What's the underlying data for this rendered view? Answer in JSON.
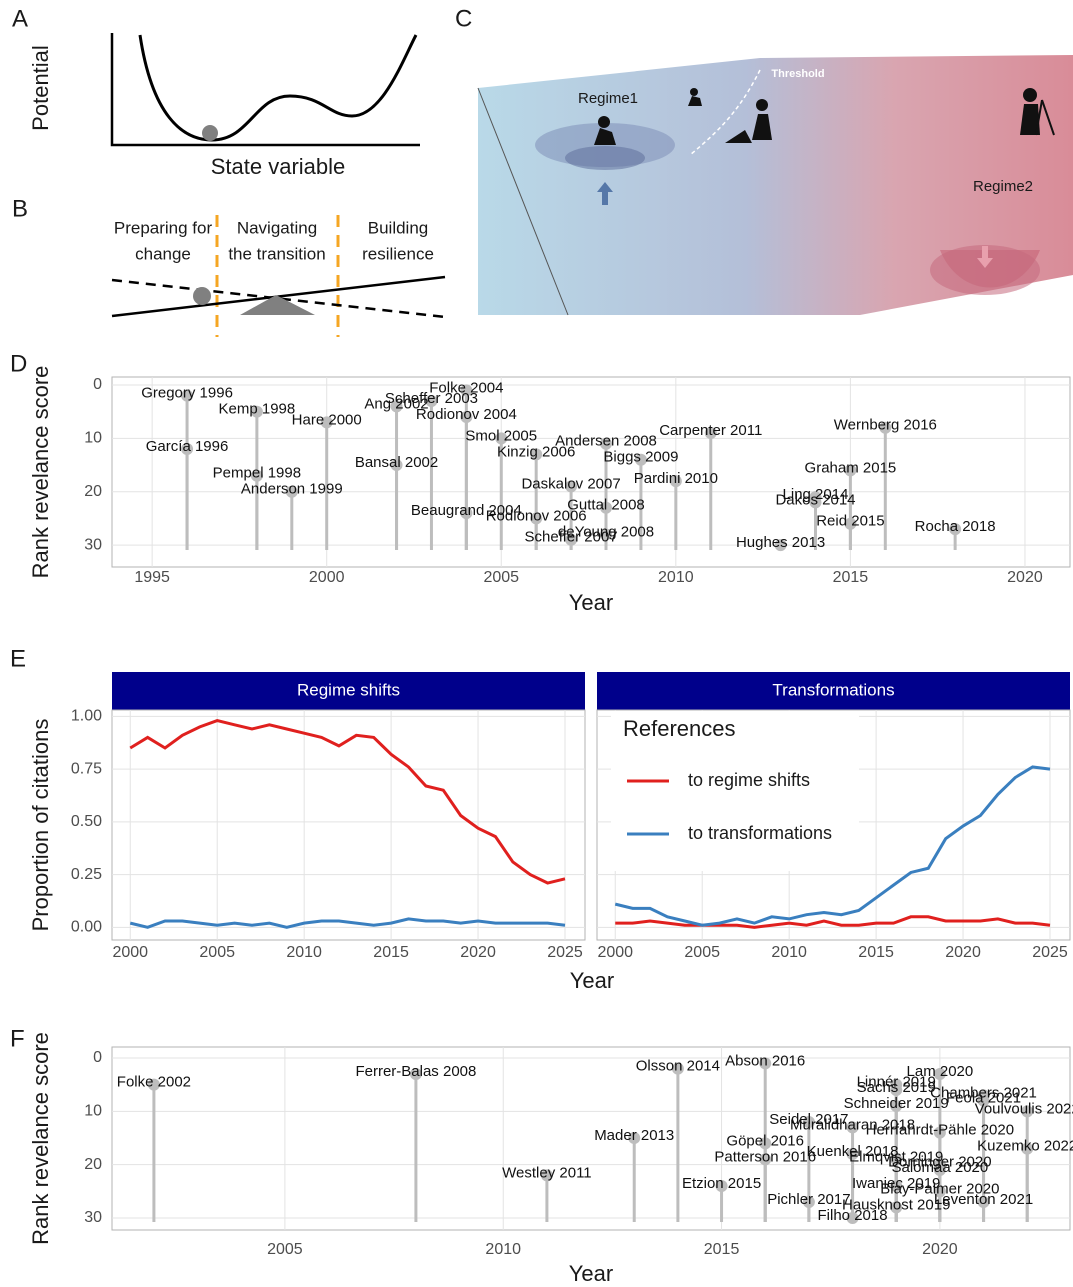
{
  "panel_letters": [
    "A",
    "B",
    "C",
    "D",
    "E",
    "F"
  ],
  "panel_a": {
    "y_label": "Potential",
    "x_label": "State variable"
  },
  "panel_b": {
    "phases": [
      [
        "Preparing for",
        "change"
      ],
      [
        "Navigating",
        "the transition"
      ],
      [
        "Building",
        "resilience"
      ]
    ]
  },
  "panel_c": {
    "labels": [
      "Regime1",
      "Threshold",
      "Regime2"
    ]
  },
  "chart_data": [
    {
      "type": "lollipop",
      "ylabel": "Rank revelance score",
      "xlabel": "Year",
      "xlim": [
        1993.85,
        2021.29
      ],
      "xticks": [
        1995,
        2000,
        2005,
        2010,
        2015,
        2020
      ],
      "ylim": [
        -1.5,
        34.1
      ],
      "yticks": [
        0,
        10,
        20,
        30
      ],
      "y_reversed": true,
      "grid": true,
      "color": "#bdbdbd",
      "points": [
        {
          "label": "Gregory 1996",
          "x": 1996,
          "y": 2
        },
        {
          "label": "García 1996",
          "x": 1996,
          "y": 12
        },
        {
          "label": "Kemp 1998",
          "x": 1998,
          "y": 5
        },
        {
          "label": "Pempel 1998",
          "x": 1998,
          "y": 17
        },
        {
          "label": "Anderson 1999",
          "x": 1999,
          "y": 20
        },
        {
          "label": "Hare 2000",
          "x": 2000,
          "y": 7
        },
        {
          "label": "Bansal 2002",
          "x": 2002,
          "y": 15
        },
        {
          "label": "Ang 2002",
          "x": 2002,
          "y": 4
        },
        {
          "label": "Scheffer 2003",
          "x": 2003,
          "y": 3
        },
        {
          "label": "Folke 2004",
          "x": 2004,
          "y": 1
        },
        {
          "label": "Rodionov 2004",
          "x": 2004,
          "y": 6
        },
        {
          "label": "Beaugrand 2004",
          "x": 2004,
          "y": 24
        },
        {
          "label": "Smol 2005",
          "x": 2005,
          "y": 10
        },
        {
          "label": "Kinzig 2006",
          "x": 2006,
          "y": 13
        },
        {
          "label": "Rodionov 2006",
          "x": 2006,
          "y": 25
        },
        {
          "label": "Daskalov 2007",
          "x": 2007,
          "y": 19
        },
        {
          "label": "Scheffer 2007",
          "x": 2007,
          "y": 29
        },
        {
          "label": "Andersen 2008",
          "x": 2008,
          "y": 11
        },
        {
          "label": "Guttal 2008",
          "x": 2008,
          "y": 23
        },
        {
          "label": "deYoung 2008",
          "x": 2008,
          "y": 28
        },
        {
          "label": "Biggs 2009",
          "x": 2009,
          "y": 14
        },
        {
          "label": "Pardini 2010",
          "x": 2010,
          "y": 18
        },
        {
          "label": "Carpenter 2011",
          "x": 2011,
          "y": 9
        },
        {
          "label": "Hughes 2013",
          "x": 2013,
          "y": 30
        },
        {
          "label": "Ling 2014",
          "x": 2014,
          "y": 21
        },
        {
          "label": "Dakos 2014",
          "x": 2014,
          "y": 22
        },
        {
          "label": "Graham 2015",
          "x": 2015,
          "y": 16
        },
        {
          "label": "Reid 2015",
          "x": 2015,
          "y": 26
        },
        {
          "label": "Wernberg 2016",
          "x": 2016,
          "y": 8
        },
        {
          "label": "Rocha 2018",
          "x": 2018,
          "y": 27
        }
      ]
    },
    {
      "type": "facet_line",
      "ylabel": "Proportion of citations",
      "xlabel": "Year",
      "x": [
        2000,
        2001,
        2002,
        2003,
        2004,
        2005,
        2006,
        2007,
        2008,
        2009,
        2010,
        2011,
        2012,
        2013,
        2014,
        2015,
        2016,
        2017,
        2018,
        2019,
        2020,
        2021,
        2022,
        2023,
        2024,
        2025
      ],
      "xlim": [
        1998.95,
        2026.15
      ],
      "xticks": [
        2000,
        2005,
        2010,
        2015,
        2020,
        2025
      ],
      "ylim": [
        -0.06,
        1.03
      ],
      "yticks": [
        {
          "value": 0,
          "label": "0.00"
        },
        {
          "value": 0.25,
          "label": "0.25"
        },
        {
          "value": 0.5,
          "label": "0.50"
        },
        {
          "value": 0.75,
          "label": "0.75"
        },
        {
          "value": 1,
          "label": "1.00"
        }
      ],
      "grid": true,
      "strip_color": "#00008b",
      "legend_title": "References",
      "series": [
        {
          "name": "to regime shifts",
          "color": "#e0201e"
        },
        {
          "name": "to transformations",
          "color": "#3a7fbf"
        }
      ],
      "facets": [
        {
          "title": "Regime shifts",
          "values": [
            [
              0.85,
              0.9,
              0.85,
              0.91,
              0.95,
              0.98,
              0.96,
              0.94,
              0.96,
              0.94,
              0.92,
              0.9,
              0.86,
              0.91,
              0.9,
              0.82,
              0.76,
              0.67,
              0.65,
              0.53,
              0.47,
              0.43,
              0.31,
              0.25,
              0.21,
              0.23
            ],
            [
              0.02,
              0.0,
              0.03,
              0.03,
              0.02,
              0.01,
              0.02,
              0.01,
              0.02,
              0.0,
              0.02,
              0.03,
              0.03,
              0.02,
              0.01,
              0.02,
              0.04,
              0.03,
              0.03,
              0.02,
              0.03,
              0.02,
              0.02,
              0.02,
              0.02,
              0.01
            ]
          ]
        },
        {
          "title": "Transformations",
          "values": [
            [
              0.02,
              0.02,
              0.03,
              0.02,
              0.01,
              0.01,
              0.01,
              0.01,
              0.0,
              0.01,
              0.02,
              0.01,
              0.03,
              0.01,
              0.01,
              0.02,
              0.02,
              0.05,
              0.05,
              0.03,
              0.03,
              0.03,
              0.04,
              0.02,
              0.02,
              0.01
            ],
            [
              0.11,
              0.09,
              0.09,
              0.05,
              0.03,
              0.01,
              0.02,
              0.04,
              0.02,
              0.05,
              0.04,
              0.06,
              0.07,
              0.06,
              0.08,
              0.14,
              0.2,
              0.26,
              0.28,
              0.42,
              0.48,
              0.53,
              0.63,
              0.71,
              0.76,
              0.75
            ]
          ]
        }
      ]
    },
    {
      "type": "lollipop",
      "ylabel": "Rank revelance score",
      "xlabel": "Year",
      "xlim": [
        2001.04,
        2022.98
      ],
      "xticks": [
        2005,
        2010,
        2015,
        2020
      ],
      "ylim": [
        -2.06,
        32.25
      ],
      "yticks": [
        0,
        10,
        20,
        30
      ],
      "y_reversed": true,
      "grid": true,
      "color": "#bdbdbd",
      "points": [
        {
          "label": "Folke 2002",
          "x": 2002,
          "y": 5
        },
        {
          "label": "Ferrer-Balas 2008",
          "x": 2008,
          "y": 3
        },
        {
          "label": "Westley 2011",
          "x": 2011,
          "y": 22
        },
        {
          "label": "Mader 2013",
          "x": 2013,
          "y": 15
        },
        {
          "label": "Olsson 2014",
          "x": 2014,
          "y": 2
        },
        {
          "label": "Etzion 2015",
          "x": 2015,
          "y": 24
        },
        {
          "label": "Abson 2016",
          "x": 2016,
          "y": 1
        },
        {
          "label": "Göpel 2016",
          "x": 2016,
          "y": 16
        },
        {
          "label": "Patterson 2016",
          "x": 2016,
          "y": 19
        },
        {
          "label": "Seidel 2017",
          "x": 2017,
          "y": 12
        },
        {
          "label": "Pichler 2017",
          "x": 2017,
          "y": 27
        },
        {
          "label": "Muralidharan 2018",
          "x": 2018,
          "y": 13
        },
        {
          "label": "Kuenkel 2018",
          "x": 2018,
          "y": 18
        },
        {
          "label": "Filho 2018",
          "x": 2018,
          "y": 30
        },
        {
          "label": "Linnér 2019",
          "x": 2019,
          "y": 5
        },
        {
          "label": "Sachs 2019",
          "x": 2019,
          "y": 6
        },
        {
          "label": "Schneider 2019",
          "x": 2019,
          "y": 9
        },
        {
          "label": "Elmqvist 2019",
          "x": 2019,
          "y": 19
        },
        {
          "label": "Iwaniec 2019",
          "x": 2019,
          "y": 24
        },
        {
          "label": "Hausknost 2019",
          "x": 2019,
          "y": 28
        },
        {
          "label": "Lam 2020",
          "x": 2020,
          "y": 3
        },
        {
          "label": "Herrfahrdt-Pähle 2020",
          "x": 2020,
          "y": 14
        },
        {
          "label": "Dorninger 2020",
          "x": 2020,
          "y": 20
        },
        {
          "label": "Salomaa 2020",
          "x": 2020,
          "y": 21
        },
        {
          "label": "Blay-Palmer 2020",
          "x": 2020,
          "y": 25
        },
        {
          "label": "Chambers 2021",
          "x": 2021,
          "y": 7
        },
        {
          "label": "Feola 2021",
          "x": 2021,
          "y": 8
        },
        {
          "label": "Leventon 2021",
          "x": 2021,
          "y": 27
        },
        {
          "label": "Voulvoulis 2022",
          "x": 2022,
          "y": 10
        },
        {
          "label": "Kuzemko 2022",
          "x": 2022,
          "y": 17
        }
      ]
    }
  ]
}
